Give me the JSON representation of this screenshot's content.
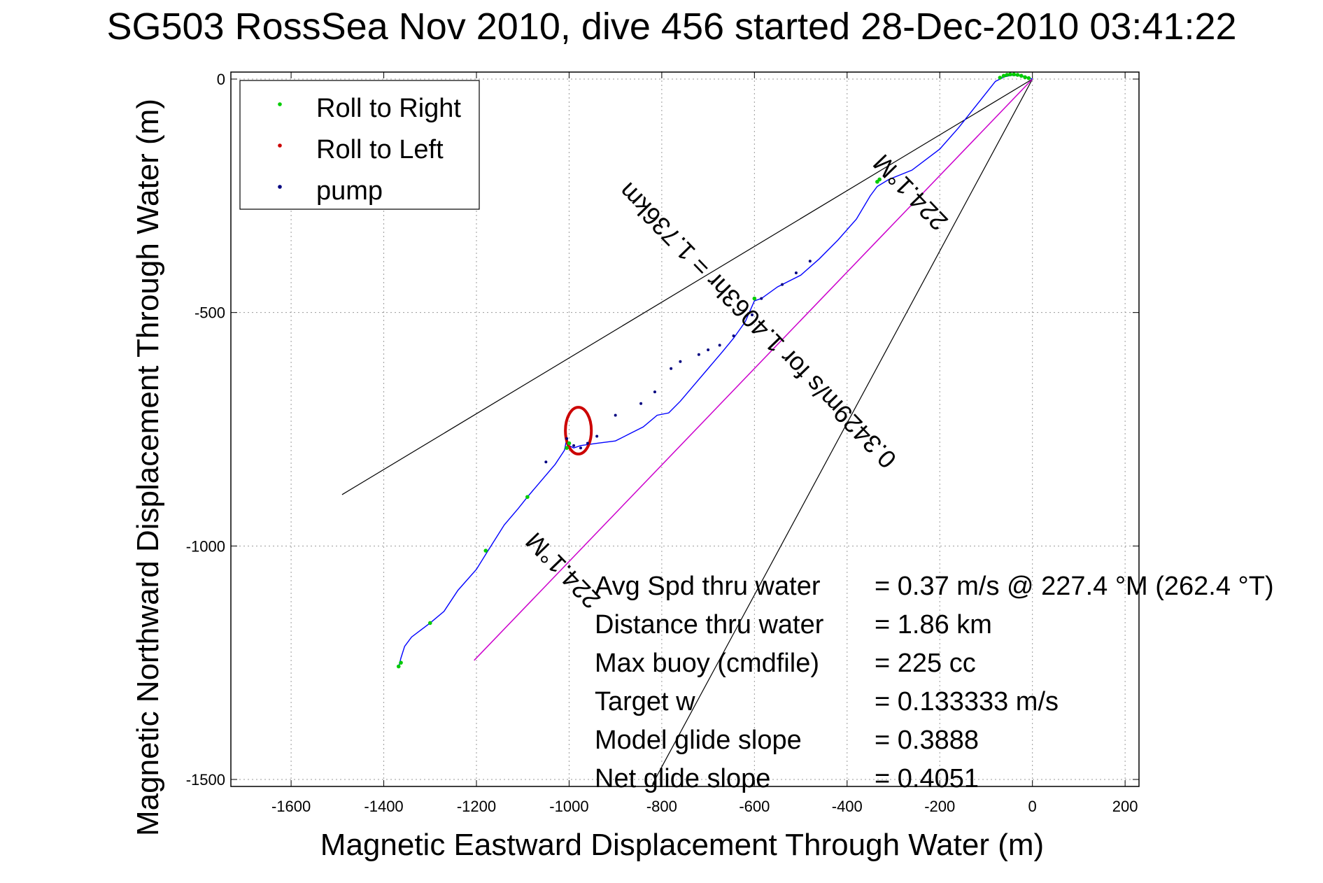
{
  "chart_data": {
    "type": "line",
    "title": "SG503 RossSea Nov 2010, dive 456 started 28-Dec-2010 03:41:22",
    "xlabel": "Magnetic Eastward Displacement Through Water (m)",
    "ylabel": "Magnetic Northward Displacement Through Water (m)",
    "xlim": [
      -1730,
      230
    ],
    "ylim": [
      -1515,
      15
    ],
    "x_ticks": [
      -1600,
      -1400,
      -1200,
      -1000,
      -800,
      -600,
      -400,
      -200,
      0,
      200
    ],
    "y_ticks": [
      0,
      -500,
      -1000,
      -1500
    ],
    "grid": true,
    "legend_position": "top-left",
    "colors": {
      "track": "#0000ff",
      "roll_right": "#00cc00",
      "roll_left": "#cc0000",
      "pump": "#000080",
      "cone_lines": "#000000",
      "heading_line": "#cc00cc"
    },
    "legend": [
      {
        "label": "Roll to Right",
        "color": "#00cc00"
      },
      {
        "label": "Roll to Left",
        "color": "#cc0000"
      },
      {
        "label": "pump",
        "color": "#000080"
      }
    ],
    "track": {
      "name": "",
      "x": [
        0,
        -15,
        -30,
        -45,
        -60,
        -80,
        -120,
        -160,
        -200,
        -260,
        -310,
        -335,
        -350,
        -380,
        -420,
        -460,
        -500,
        -550,
        -585,
        -600,
        -620,
        -645,
        -670,
        -700,
        -730,
        -760,
        -785,
        -810,
        -840,
        -870,
        -900,
        -940,
        -975,
        -990,
        -1000,
        -1005,
        -1010,
        -1030,
        -1060,
        -1090,
        -1110,
        -1140,
        -1175,
        -1200,
        -1240,
        -1270,
        -1300,
        -1320,
        -1340,
        -1355,
        -1363,
        -1368
      ],
      "y": [
        0,
        5,
        8,
        8,
        5,
        -5,
        -55,
        -105,
        -150,
        -195,
        -215,
        -230,
        -250,
        -300,
        -345,
        -385,
        -420,
        -445,
        -470,
        -475,
        -520,
        -555,
        -585,
        -620,
        -655,
        -690,
        -715,
        -720,
        -745,
        -760,
        -775,
        -780,
        -785,
        -790,
        -785,
        -770,
        -795,
        -825,
        -860,
        -895,
        -920,
        -955,
        -1010,
        -1050,
        -1095,
        -1140,
        -1165,
        -1180,
        -1195,
        -1215,
        -1240,
        -1260
      ]
    },
    "roll_right_points": {
      "x": [
        -70,
        -62,
        -55,
        -48,
        -40,
        -32,
        -24,
        -16,
        -8,
        -330,
        -335,
        -600,
        -1005,
        -1000,
        -1090,
        -1180,
        -1300,
        -1363,
        -1368
      ],
      "y": [
        3,
        7,
        9,
        10,
        10,
        9,
        7,
        4,
        2,
        -215,
        -220,
        -470,
        -790,
        -780,
        -895,
        -1010,
        -1165,
        -1250,
        -1258
      ]
    },
    "roll_left_loop": {
      "center": [
        -980,
        -753
      ],
      "radius_x": 28,
      "radius_y": 50
    },
    "pump_points": {
      "x": [
        -480,
        -510,
        -540,
        -585,
        -605,
        -645,
        -675,
        -700,
        -720,
        -760,
        -780,
        -815,
        -845,
        -900,
        -940,
        -960,
        -975,
        -990,
        -1005,
        -1050
      ],
      "y": [
        -390,
        -415,
        -440,
        -470,
        -505,
        -550,
        -570,
        -580,
        -590,
        -605,
        -620,
        -670,
        -695,
        -720,
        -765,
        -780,
        -790,
        -785,
        -770,
        -820
      ]
    },
    "cone_lines": [
      {
        "x": [
          0,
          -1490
        ],
        "y": [
          0,
          -890
        ]
      },
      {
        "x": [
          0,
          -820
        ],
        "y": [
          0,
          -1510
        ]
      }
    ],
    "heading_line": {
      "x": [
        0,
        -1205
      ],
      "y": [
        0,
        -1245
      ]
    },
    "rotated_annotations": [
      {
        "text": "224.1°M",
        "x": -250,
        "y": -230,
        "angle": 224.1
      },
      {
        "text": "0.3429m/s for 1.4063hr = 1.736km",
        "x": -580,
        "y": -515,
        "angle": 224.1
      },
      {
        "text": "224.1°M",
        "x": -1000,
        "y": -1040,
        "angle": 224.1
      }
    ],
    "stats": [
      {
        "label": "Avg Spd thru water",
        "value": "=  0.37 m/s @ 227.4 °M (262.4 °T)"
      },
      {
        "label": "Distance thru water",
        "value": "=  1.86 km"
      },
      {
        "label": "Max buoy (cmdfile)",
        "value": "= 225 cc"
      },
      {
        "label": "Target w",
        "value": "= 0.133333 m/s"
      },
      {
        "label": "Model glide slope",
        "value": "= 0.3888"
      },
      {
        "label": "Net glide slope",
        "value": "= 0.4051"
      }
    ]
  }
}
